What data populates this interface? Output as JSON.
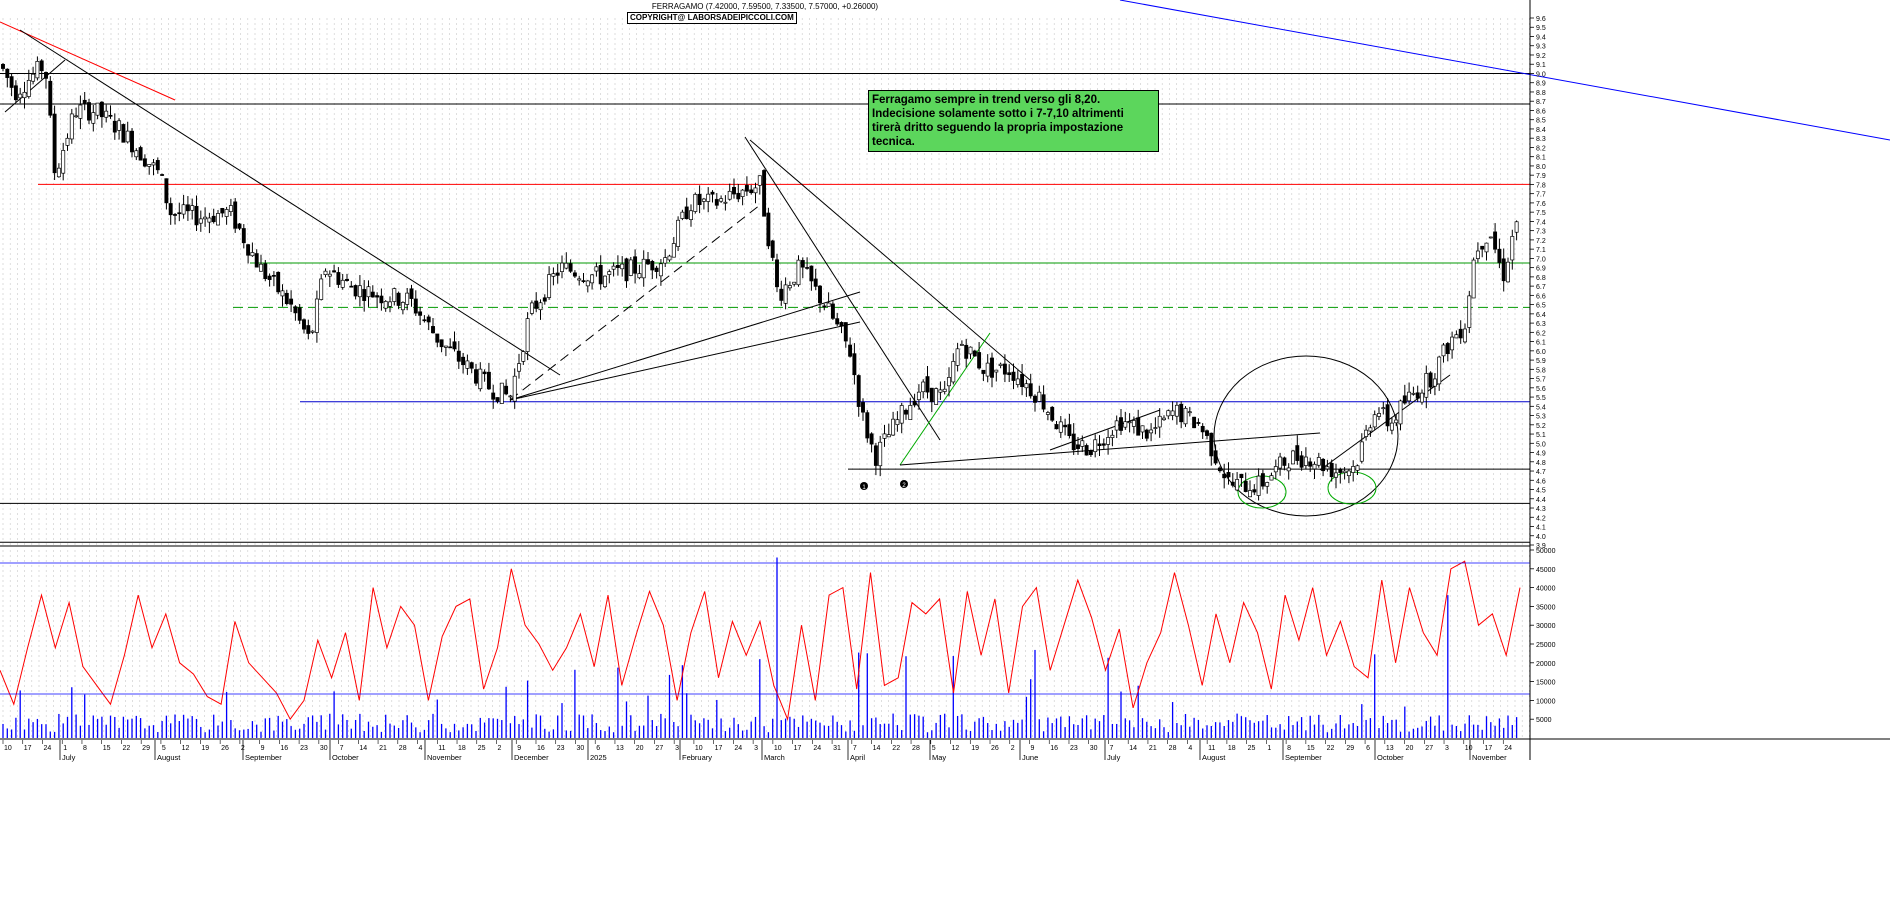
{
  "header": {
    "title": "FERRAGAMO (7.42000, 7.59500, 7.33500, 7.57000, +0.26000)",
    "copyright": "COPYRIGHT@ LABORSADEIPICCOLI.COM"
  },
  "annotation": {
    "text": "Ferragamo sempre in trend verso gli 8,20.\nIndecisione solamente sotto i 7-7,10 altrimenti tirerà dritto seguendo la propria impostazione tecnica."
  },
  "markers": [
    "1",
    "2"
  ],
  "colors": {
    "candle": "#000000",
    "resistance": "#ff0000",
    "support_green": "#009900",
    "support_blue": "#0000cc",
    "oscillator": "#ff0000",
    "volume": "#0000ff",
    "note_bg": "#5cd65c",
    "grid": "#c8c8c8"
  },
  "chart_data": [
    {
      "type": "candlestick",
      "ylim": [
        3.9,
        9.6
      ],
      "yticks": [
        "3.9",
        "4.0",
        "4.1",
        "4.2",
        "4.3",
        "4.4",
        "4.5",
        "4.6",
        "4.7",
        "4.8",
        "4.9",
        "5.0",
        "5.1",
        "5.2",
        "5.3",
        "5.4",
        "5.5",
        "5.6",
        "5.7",
        "5.8",
        "5.9",
        "6.0",
        "6.1",
        "6.2",
        "6.3",
        "6.4",
        "6.5",
        "6.6",
        "6.7",
        "6.8",
        "6.9",
        "7.0",
        "7.1",
        "7.2",
        "7.3",
        "7.4",
        "7.5",
        "7.6",
        "7.7",
        "7.8",
        "7.9",
        "8.0",
        "8.1",
        "8.2",
        "8.3",
        "8.4",
        "8.5",
        "8.6",
        "8.7",
        "8.8",
        "8.9",
        "9.0",
        "9.1",
        "9.2",
        "9.3",
        "9.4",
        "9.5",
        "9.6"
      ],
      "last_ohlc": {
        "open": 7.42,
        "high": 7.595,
        "low": 7.335,
        "close": 7.57,
        "change": 0.26
      },
      "horizontal_levels": [
        {
          "value": 9.0,
          "color": "black"
        },
        {
          "value": 8.67,
          "color": "black"
        },
        {
          "value": 7.8,
          "color": "red"
        },
        {
          "value": 6.95,
          "color": "green"
        },
        {
          "value": 6.47,
          "color": "green",
          "style": "dashed"
        },
        {
          "value": 5.45,
          "color": "blue"
        },
        {
          "value": 4.72,
          "color": "black"
        },
        {
          "value": 4.35,
          "color": "black"
        },
        {
          "value": 3.93,
          "color": "black"
        }
      ],
      "anchors": [
        {
          "x": 0,
          "y": 9.1
        },
        {
          "x": 15,
          "y": 8.8
        },
        {
          "x": 45,
          "y": 9.1
        },
        {
          "x": 55,
          "y": 7.9
        },
        {
          "x": 75,
          "y": 8.6
        },
        {
          "x": 95,
          "y": 8.6
        },
        {
          "x": 120,
          "y": 8.4
        },
        {
          "x": 160,
          "y": 7.9
        },
        {
          "x": 170,
          "y": 7.5
        },
        {
          "x": 200,
          "y": 7.45
        },
        {
          "x": 230,
          "y": 7.5
        },
        {
          "x": 260,
          "y": 6.9
        },
        {
          "x": 290,
          "y": 6.5
        },
        {
          "x": 310,
          "y": 6.1
        },
        {
          "x": 325,
          "y": 6.9
        },
        {
          "x": 350,
          "y": 6.7
        },
        {
          "x": 380,
          "y": 6.6
        },
        {
          "x": 410,
          "y": 6.55
        },
        {
          "x": 440,
          "y": 6.1
        },
        {
          "x": 460,
          "y": 5.9
        },
        {
          "x": 490,
          "y": 5.6
        },
        {
          "x": 510,
          "y": 5.5
        },
        {
          "x": 530,
          "y": 6.4
        },
        {
          "x": 560,
          "y": 6.9
        },
        {
          "x": 600,
          "y": 6.8
        },
        {
          "x": 640,
          "y": 6.9
        },
        {
          "x": 665,
          "y": 7.0
        },
        {
          "x": 690,
          "y": 7.6
        },
        {
          "x": 715,
          "y": 7.6
        },
        {
          "x": 735,
          "y": 7.7
        },
        {
          "x": 760,
          "y": 7.8
        },
        {
          "x": 778,
          "y": 6.6
        },
        {
          "x": 800,
          "y": 6.9
        },
        {
          "x": 825,
          "y": 6.5
        },
        {
          "x": 850,
          "y": 6.0
        },
        {
          "x": 862,
          "y": 5.3
        },
        {
          "x": 875,
          "y": 4.85
        },
        {
          "x": 895,
          "y": 5.2
        },
        {
          "x": 920,
          "y": 5.6
        },
        {
          "x": 945,
          "y": 5.5
        },
        {
          "x": 960,
          "y": 6.1
        },
        {
          "x": 985,
          "y": 5.8
        },
        {
          "x": 1010,
          "y": 5.8
        },
        {
          "x": 1040,
          "y": 5.5
        },
        {
          "x": 1070,
          "y": 5.0
        },
        {
          "x": 1090,
          "y": 4.95
        },
        {
          "x": 1120,
          "y": 5.25
        },
        {
          "x": 1150,
          "y": 5.1
        },
        {
          "x": 1175,
          "y": 5.35
        },
        {
          "x": 1200,
          "y": 5.2
        },
        {
          "x": 1230,
          "y": 4.55
        },
        {
          "x": 1260,
          "y": 4.55
        },
        {
          "x": 1290,
          "y": 4.85
        },
        {
          "x": 1310,
          "y": 4.85
        },
        {
          "x": 1335,
          "y": 4.7
        },
        {
          "x": 1355,
          "y": 4.75
        },
        {
          "x": 1375,
          "y": 5.4
        },
        {
          "x": 1390,
          "y": 5.2
        },
        {
          "x": 1405,
          "y": 5.45
        },
        {
          "x": 1430,
          "y": 5.7
        },
        {
          "x": 1450,
          "y": 6.1
        },
        {
          "x": 1465,
          "y": 6.3
        },
        {
          "x": 1475,
          "y": 7.1
        },
        {
          "x": 1490,
          "y": 7.3
        },
        {
          "x": 1503,
          "y": 6.8
        },
        {
          "x": 1520,
          "y": 7.57
        }
      ]
    },
    {
      "type": "line",
      "series": [
        {
          "values": [
            18000,
            9000,
            24000,
            38000,
            24000,
            36000,
            19000,
            14000,
            9000,
            22000,
            38000,
            24000,
            33000,
            20000,
            17000,
            11000,
            9000,
            31000,
            20000,
            16000,
            12000,
            5000,
            10000,
            26000,
            16000,
            28000,
            10000,
            40000,
            24000,
            35000,
            30000,
            10000,
            27000,
            35000,
            37000,
            13000,
            24000,
            45000,
            30000,
            25000,
            18000,
            24000,
            33000,
            19000,
            38000,
            14000,
            27000,
            39000,
            30000,
            10000,
            28000,
            39000,
            16000,
            31000,
            22000,
            31000,
            14000,
            5000,
            30000,
            10000,
            38000,
            40000,
            13000,
            44000,
            14000,
            16000,
            36000,
            33000,
            37000,
            12000,
            39000,
            22000,
            37000,
            12000,
            35000,
            40000,
            18000,
            30000,
            42000,
            32000,
            18000,
            29000,
            8000,
            20000,
            28000,
            44000,
            30000,
            14000,
            33000,
            20000,
            36000,
            28000,
            13000,
            38000,
            26000,
            40000,
            22000,
            31000,
            19000,
            16000,
            42000,
            20000,
            40000,
            28000,
            22000,
            45000,
            47000,
            30000,
            33000,
            22000,
            40000
          ]
        }
      ],
      "ylim": [
        0,
        50000
      ],
      "yticks": [
        "5000",
        "10000",
        "15000",
        "20000",
        "25000",
        "30000",
        "35000",
        "40000",
        "45000",
        "50000"
      ]
    },
    {
      "type": "bar",
      "series_name": "volume",
      "note": "blue bars for daily volume; spikes at March and late October"
    }
  ],
  "x_axis": {
    "months": [
      "July",
      "August",
      "September",
      "October",
      "November",
      "December",
      "2025",
      "February",
      "March",
      "April",
      "May",
      "June",
      "July",
      "August",
      "September",
      "October",
      "November"
    ],
    "days": [
      "10",
      "17",
      "24",
      "1",
      "8",
      "15",
      "22",
      "29",
      "5",
      "12",
      "19",
      "26",
      "2",
      "9",
      "16",
      "23",
      "30",
      "7",
      "14",
      "21",
      "28",
      "4",
      "11",
      "18",
      "25",
      "2",
      "9",
      "16",
      "23",
      "30",
      "6",
      "13",
      "20",
      "27",
      "3",
      "10",
      "17",
      "24",
      "3",
      "10",
      "17",
      "24",
      "31",
      "7",
      "14",
      "22",
      "28",
      "5",
      "12",
      "19",
      "26",
      "2",
      "9",
      "16",
      "23",
      "30",
      "7",
      "14",
      "21",
      "28",
      "4",
      "11",
      "18",
      "25",
      "1",
      "8",
      "15",
      "22",
      "29",
      "6",
      "13",
      "20",
      "27",
      "3",
      "10",
      "17",
      "24"
    ]
  }
}
